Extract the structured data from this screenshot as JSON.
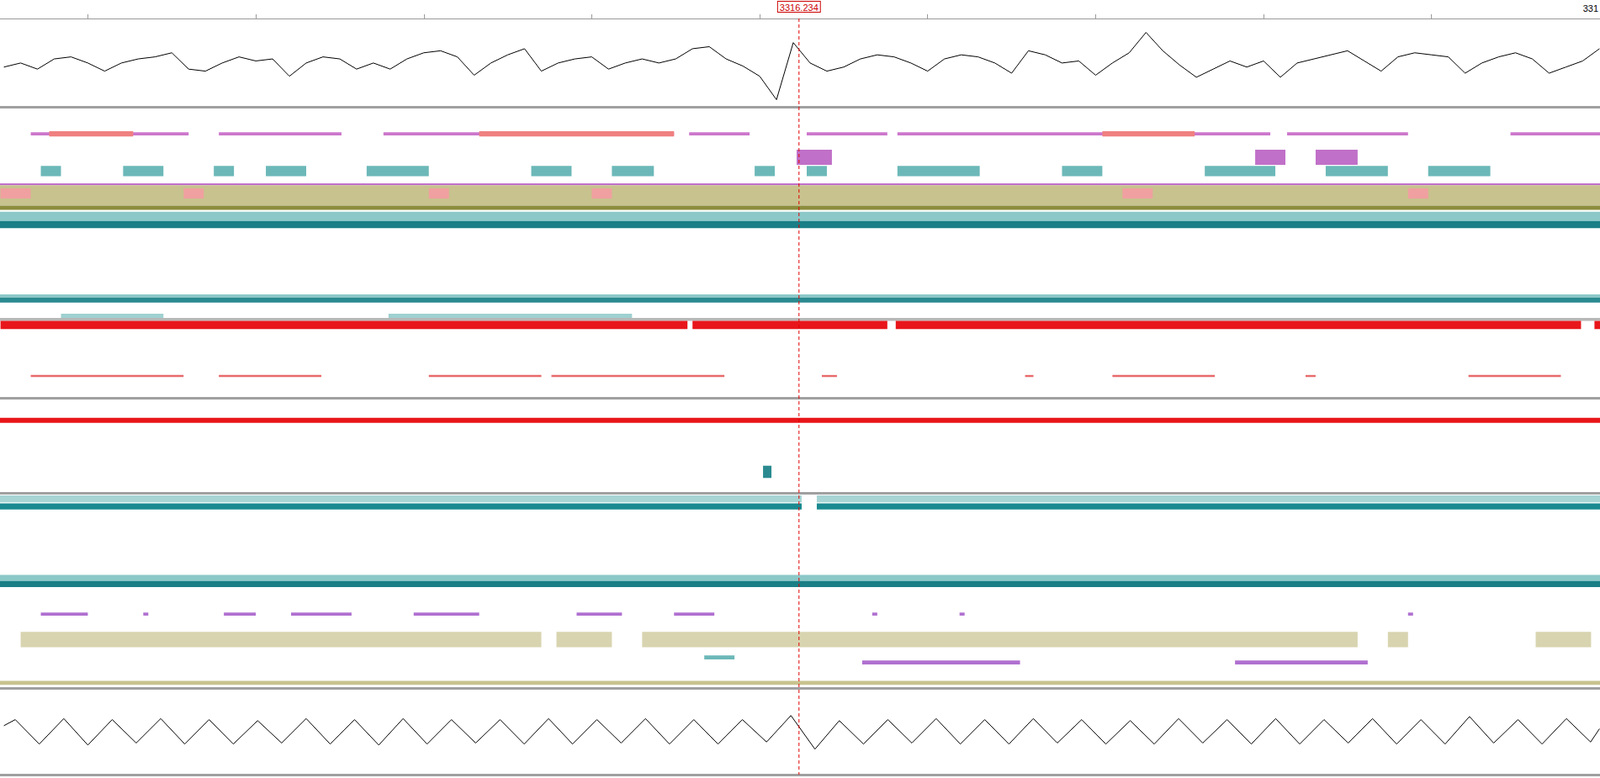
{
  "chart_data": {
    "type": "line",
    "tick_labels": false,
    "xlim": [
      3311.477,
      3321.003
    ],
    "xticks": [
      3312,
      3313,
      3314,
      3315,
      3316,
      3317,
      3318,
      3319,
      3320
    ],
    "cursor": {
      "x": 3316.234,
      "label": "3316.234"
    },
    "annotations": [
      {
        "x": 3320.94,
        "text": "331"
      }
    ],
    "panels": [
      {
        "type": "line",
        "ylim": [
          0,
          85
        ],
        "series": [
          {
            "color": "#000000",
            "x": [
              3311.5,
              3311.6,
              3311.7,
              3311.8,
              3311.9,
              3312.0,
              3312.1,
              3312.2,
              3312.3,
              3312.4,
              3312.5,
              3312.6,
              3312.7,
              3312.8,
              3312.9,
              3313.0,
              3313.1,
              3313.2,
              3313.3,
              3313.4,
              3313.5,
              3313.6,
              3313.7,
              3313.8,
              3313.9,
              3314.0,
              3314.1,
              3314.2,
              3314.3,
              3314.4,
              3314.5,
              3314.6,
              3314.7,
              3314.8,
              3314.9,
              3315.0,
              3315.1,
              3315.2,
              3315.3,
              3315.4,
              3315.5,
              3315.6,
              3315.7,
              3315.8,
              3315.9,
              3316.0,
              3316.1,
              3316.2,
              3316.3,
              3316.4,
              3316.5,
              3316.6,
              3316.7,
              3316.8,
              3316.9,
              3317.0,
              3317.1,
              3317.2,
              3317.3,
              3317.4,
              3317.5,
              3317.6,
              3317.7,
              3317.8,
              3317.9,
              3318.0,
              3318.1,
              3318.2,
              3318.3,
              3318.4,
              3318.5,
              3318.6,
              3318.7,
              3318.8,
              3318.9,
              3319.0,
              3319.1,
              3319.2,
              3319.3,
              3319.4,
              3319.5,
              3319.6,
              3319.7,
              3319.8,
              3319.9,
              3320.0,
              3320.1,
              3320.2,
              3320.3,
              3320.4,
              3320.5,
              3320.6,
              3320.7,
              3320.8,
              3320.9,
              3321.0
            ],
            "values": [
              39,
              43,
              37,
              47,
              49,
              43,
              35,
              43,
              47,
              49,
              53,
              37,
              35,
              43,
              49,
              45,
              47,
              30,
              43,
              49,
              47,
              37,
              43,
              37,
              47,
              53,
              55,
              49,
              31,
              43,
              51,
              57,
              35,
              43,
              47,
              49,
              37,
              43,
              47,
              43,
              47,
              57,
              59,
              47,
              40,
              30,
              7,
              63,
              43,
              35,
              39,
              47,
              51,
              49,
              43,
              35,
              47,
              51,
              49,
              43,
              33,
              55,
              51,
              43,
              45,
              31,
              43,
              53,
              73,
              55,
              41,
              29,
              37,
              45,
              39,
              45,
              29,
              43,
              47,
              51,
              55,
              45,
              35,
              49,
              53,
              51,
              49,
              33,
              43,
              49,
              53,
              47,
              33,
              39,
              45,
              57
            ]
          }
        ]
      },
      {
        "type": "band",
        "ylim": [
          0,
          570
        ],
        "series": [
          {
            "color": "#cc77cc",
            "y": [
              25,
              28
            ],
            "segments": [
              [
                3311.66,
                3312.6
              ],
              [
                3312.78,
                3313.51
              ],
              [
                3313.76,
                3315.49
              ],
              [
                3315.58,
                3315.94
              ],
              [
                3316.28,
                3316.76
              ],
              [
                3316.82,
                3319.04
              ],
              [
                3319.14,
                3319.86
              ],
              [
                3320.47,
                3321.003
              ]
            ]
          },
          {
            "color": "#f08080",
            "y": [
              24,
              29
            ],
            "segments": [
              [
                3311.77,
                3312.27
              ],
              [
                3314.33,
                3315.49
              ],
              [
                3318.04,
                3318.59
              ]
            ]
          },
          {
            "color": "#c070c8",
            "y": [
              42,
              57
            ],
            "segments": [
              [
                3316.22,
                3316.43
              ],
              [
                3318.95,
                3319.13
              ],
              [
                3319.31,
                3319.56
              ]
            ]
          },
          {
            "color": "#6cb8b8",
            "y": [
              58,
              68
            ],
            "segments": [
              [
                3311.72,
                3311.84
              ],
              [
                3312.21,
                3312.45
              ],
              [
                3312.75,
                3312.87
              ],
              [
                3313.06,
                3313.3
              ],
              [
                3313.66,
                3314.03
              ],
              [
                3314.64,
                3314.88
              ],
              [
                3315.12,
                3315.37
              ],
              [
                3315.97,
                3316.09
              ],
              [
                3316.28,
                3316.4
              ],
              [
                3316.82,
                3317.31
              ],
              [
                3317.8,
                3318.04
              ],
              [
                3318.65,
                3319.07
              ],
              [
                3319.37,
                3319.74
              ],
              [
                3319.98,
                3320.35
              ]
            ]
          },
          {
            "color": "#c070c8",
            "y": [
              75,
              77
            ],
            "segments": [
              [
                3311.477,
                3321.003
              ]
            ]
          },
          {
            "color": "#c8c28e",
            "y": [
              77,
              97
            ],
            "segments": [
              [
                3311.477,
                3321.003
              ]
            ]
          },
          {
            "color": "#f0a0a0",
            "y": [
              80,
              90
            ],
            "segments": [
              [
                3311.48,
                3311.66
              ],
              [
                3312.57,
                3312.69
              ],
              [
                3314.03,
                3314.15
              ],
              [
                3315.0,
                3315.12
              ],
              [
                3318.16,
                3318.34
              ],
              [
                3319.86,
                3319.98
              ]
            ]
          },
          {
            "color": "#8c8c3c",
            "y": [
              97,
              101
            ],
            "segments": [
              [
                3311.477,
                3321.003
              ]
            ]
          },
          {
            "color": "#8cc8c8",
            "y": [
              103,
              112
            ],
            "segments": [
              [
                3311.477,
                3321.003
              ]
            ]
          },
          {
            "color": "#1a7f86",
            "y": [
              112,
              119
            ],
            "segments": [
              [
                3311.477,
                3321.003
              ]
            ]
          },
          {
            "color": "#8cc8c8",
            "y": [
              184,
              187
            ],
            "segments": [
              [
                3311.477,
                3321.003
              ]
            ]
          },
          {
            "color": "#2a8a90",
            "y": [
              187,
              192
            ],
            "segments": [
              [
                3311.477,
                3321.003
              ]
            ]
          },
          {
            "color": "#9fd0d0",
            "y": [
              203,
              207
            ],
            "segments": [
              [
                3311.84,
                3312.45
              ],
              [
                3313.79,
                3315.24
              ]
            ]
          },
          {
            "color": "#b8b8b8",
            "y": [
              207,
              210
            ],
            "segments": [
              [
                3311.477,
                3321.003
              ]
            ]
          },
          {
            "color": "#e8161a",
            "y": [
              210,
              218
            ],
            "segments": [
              [
                3311.48,
                3315.57
              ],
              [
                3315.6,
                3316.76
              ],
              [
                3316.81,
                3320.89
              ],
              [
                3320.97,
                3321.003
              ]
            ]
          },
          {
            "color": "#e86a6a",
            "y": [
              263,
              265
            ],
            "segments": [
              [
                3311.66,
                3312.57
              ],
              [
                3312.78,
                3313.39
              ],
              [
                3314.03,
                3314.7
              ],
              [
                3314.76,
                3315.79
              ],
              [
                3316.37,
                3316.46
              ],
              [
                3317.58,
                3317.63
              ],
              [
                3318.1,
                3318.71
              ],
              [
                3319.25,
                3319.31
              ],
              [
                3320.22,
                3320.77
              ]
            ]
          },
          {
            "color": "#e8161a",
            "y": [
              305,
              310
            ],
            "segments": [
              [
                3311.477,
                3321.003
              ]
            ]
          },
          {
            "color": "#2a8a90",
            "y": [
              352,
              364
            ],
            "segments": [
              [
                3316.02,
                3316.07
              ]
            ]
          },
          {
            "color": "#a8d4d4",
            "y": [
              381,
              388
            ],
            "segments": [
              [
                3311.477,
                3316.25
              ],
              [
                3316.34,
                3321.003
              ]
            ]
          },
          {
            "color": "#1a8a90",
            "y": [
              389,
              395
            ],
            "segments": [
              [
                3311.477,
                3316.25
              ],
              [
                3316.34,
                3321.003
              ]
            ]
          },
          {
            "color": "#8cc8c8",
            "y": [
              459,
              465
            ],
            "segments": [
              [
                3311.477,
                3321.003
              ]
            ]
          },
          {
            "color": "#1a7f86",
            "y": [
              465,
              471
            ],
            "segments": [
              [
                3311.477,
                3321.003
              ]
            ]
          },
          {
            "color": "#b070d0",
            "y": [
              496,
              499
            ],
            "segments": [
              [
                3311.72,
                3312.0
              ],
              [
                3312.33,
                3312.36
              ],
              [
                3312.81,
                3313.0
              ],
              [
                3313.21,
                3313.57
              ],
              [
                3313.94,
                3314.33
              ],
              [
                3314.91,
                3315.18
              ],
              [
                3315.49,
                3315.73
              ],
              [
                3316.67,
                3316.7
              ],
              [
                3317.19,
                3317.22
              ],
              [
                3319.86,
                3319.89
              ]
            ]
          },
          {
            "color": "#d8d4b0",
            "y": [
              515,
              530
            ],
            "segments": [
              [
                3311.6,
                3314.7
              ],
              [
                3314.79,
                3315.12
              ],
              [
                3315.3,
                3319.56
              ],
              [
                3319.74,
                3319.86
              ],
              [
                3320.62,
                3320.95
              ]
            ]
          },
          {
            "color": "#6cb8b8",
            "y": [
              538,
              542
            ],
            "segments": [
              [
                3315.67,
                3315.85
              ]
            ]
          },
          {
            "color": "#b070d0",
            "y": [
              543,
              547
            ],
            "segments": [
              [
                3316.61,
                3317.55
              ],
              [
                3318.83,
                3319.62
              ]
            ]
          },
          {
            "color": "#c8c28e",
            "y": [
              563,
              567
            ],
            "segments": [
              [
                3311.477,
                3321.003
              ]
            ]
          }
        ]
      },
      {
        "type": "line",
        "ylim": [
          0,
          85
        ],
        "series": [
          {
            "color": "#000000",
            "x": [
              3311.5,
              3311.568,
              3311.711,
              3311.857,
              3312.0,
              3312.145,
              3312.288,
              3312.434,
              3312.577,
              3312.722,
              3312.866,
              3313.011,
              3313.154,
              3313.3,
              3313.443,
              3313.588,
              3313.732,
              3313.877,
              3314.02,
              3314.165,
              3314.309,
              3314.454,
              3314.598,
              3314.743,
              3314.886,
              3315.031,
              3315.175,
              3315.32,
              3315.463,
              3315.608,
              3315.752,
              3315.897,
              3316.041,
              3316.186,
              3316.329,
              3316.474,
              3316.618,
              3316.763,
              3316.906,
              3317.051,
              3317.195,
              3317.34,
              3317.484,
              3317.629,
              3317.772,
              3317.917,
              3318.061,
              3318.206,
              3318.349,
              3318.494,
              3318.638,
              3318.783,
              3318.927,
              3319.072,
              3319.215,
              3319.36,
              3319.504,
              3319.649,
              3319.792,
              3319.937,
              3320.081,
              3320.226,
              3320.37,
              3320.515,
              3320.658,
              3320.803,
              3320.947,
              3321.0
            ],
            "values": [
              48,
              54,
              30,
              55,
              29,
              54,
              31,
              55,
              30,
              54,
              30,
              53,
              31,
              55,
              30,
              54,
              29,
              55,
              30,
              54,
              31,
              54,
              30,
              55,
              30,
              54,
              31,
              55,
              30,
              54,
              30,
              54,
              32,
              58,
              25,
              53,
              30,
              54,
              31,
              55,
              30,
              54,
              30,
              55,
              31,
              54,
              30,
              53,
              30,
              55,
              31,
              54,
              30,
              55,
              30,
              54,
              31,
              55,
              30,
              54,
              30,
              57,
              31,
              54,
              30,
              55,
              32,
              45
            ]
          }
        ]
      }
    ]
  }
}
